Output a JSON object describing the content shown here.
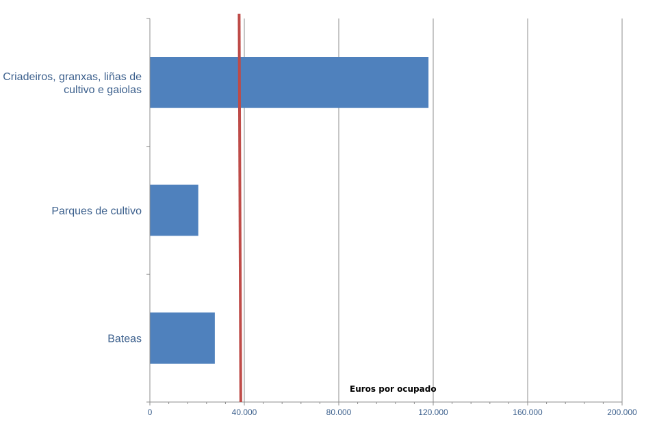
{
  "chart_data": {
    "type": "bar",
    "orientation": "horizontal",
    "categories": [
      [
        "Criadeiros, granxas, liñas de",
        "cultivo e gaiolas"
      ],
      [
        "Parques de cultivo"
      ],
      [
        "Bateas"
      ]
    ],
    "values": [
      118000,
      20500,
      27500
    ],
    "xlim": [
      0,
      200000
    ],
    "xticks": [
      0,
      40000,
      80000,
      120000,
      160000,
      200000
    ],
    "xtick_labels": [
      "0",
      "40.000",
      "80.000",
      "120.000",
      "160.000",
      "200.000"
    ],
    "grid": "vertical",
    "reference_line": {
      "x_top": 37800,
      "x_bottom": 38500
    },
    "annotation": "Euros por ocupado",
    "colors": {
      "bar": "#4f81bd",
      "label": "#3b5f8c",
      "reference": "#be4b48",
      "grid": "#8c8c8c",
      "annotation": "#000000"
    }
  }
}
